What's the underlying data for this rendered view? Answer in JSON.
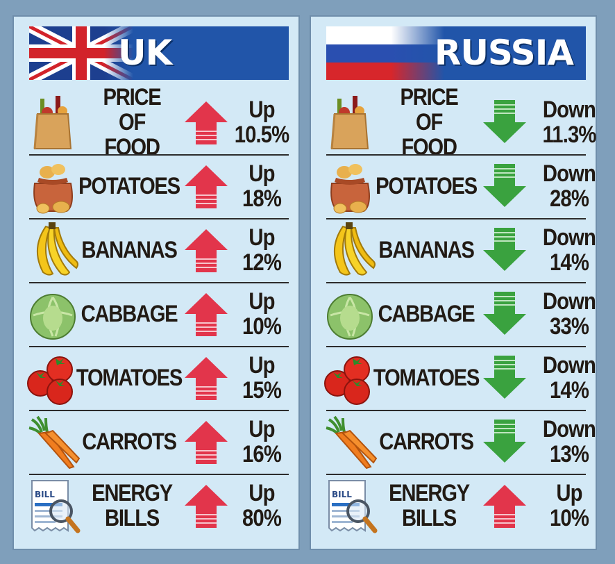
{
  "colors": {
    "background": "#7f9fbb",
    "panel": "#d3e9f6",
    "header_band": "#2155a9",
    "arrow_up": "#e2354b",
    "arrow_down": "#3aa23f",
    "text": "#211a14"
  },
  "uk": {
    "country": "UK",
    "flag_icon": "uk-flag-icon",
    "rows": [
      {
        "line1": "PRICE",
        "line2": "OF FOOD",
        "direction": "Up",
        "change": "10.5%",
        "icon": "grocery-bag-icon"
      },
      {
        "line1": "POTATOES",
        "line2": "",
        "direction": "Up",
        "change": "18%",
        "icon": "potato-sack-icon"
      },
      {
        "line1": "BANANAS",
        "line2": "",
        "direction": "Up",
        "change": "12%",
        "icon": "banana-icon"
      },
      {
        "line1": "CABBAGE",
        "line2": "",
        "direction": "Up",
        "change": "10%",
        "icon": "cabbage-icon"
      },
      {
        "line1": "TOMATOES",
        "line2": "",
        "direction": "Up",
        "change": "15%",
        "icon": "tomato-icon"
      },
      {
        "line1": "CARROTS",
        "line2": "",
        "direction": "Up",
        "change": "16%",
        "icon": "carrot-icon"
      },
      {
        "line1": "ENERGY",
        "line2": "BILLS",
        "direction": "Up",
        "change": "80%",
        "icon": "bill-magnifier-icon",
        "bill_text": "BILL"
      }
    ]
  },
  "russia": {
    "country": "RUSSIA",
    "flag_icon": "russia-flag-icon",
    "rows": [
      {
        "line1": "PRICE",
        "line2": "OF FOOD",
        "direction": "Down",
        "change": "11.3%",
        "icon": "grocery-bag-icon"
      },
      {
        "line1": "POTATOES",
        "line2": "",
        "direction": "Down",
        "change": "28%",
        "icon": "potato-sack-icon"
      },
      {
        "line1": "BANANAS",
        "line2": "",
        "direction": "Down",
        "change": "14%",
        "icon": "banana-icon"
      },
      {
        "line1": "CABBAGE",
        "line2": "",
        "direction": "Down",
        "change": "33%",
        "icon": "cabbage-icon"
      },
      {
        "line1": "TOMATOES",
        "line2": "",
        "direction": "Down",
        "change": "14%",
        "icon": "tomato-icon"
      },
      {
        "line1": "CARROTS",
        "line2": "",
        "direction": "Down",
        "change": "13%",
        "icon": "carrot-icon"
      },
      {
        "line1": "ENERGY",
        "line2": "BILLS",
        "direction": "Up",
        "change": "10%",
        "icon": "bill-magnifier-icon",
        "bill_text": "BILL"
      }
    ]
  }
}
